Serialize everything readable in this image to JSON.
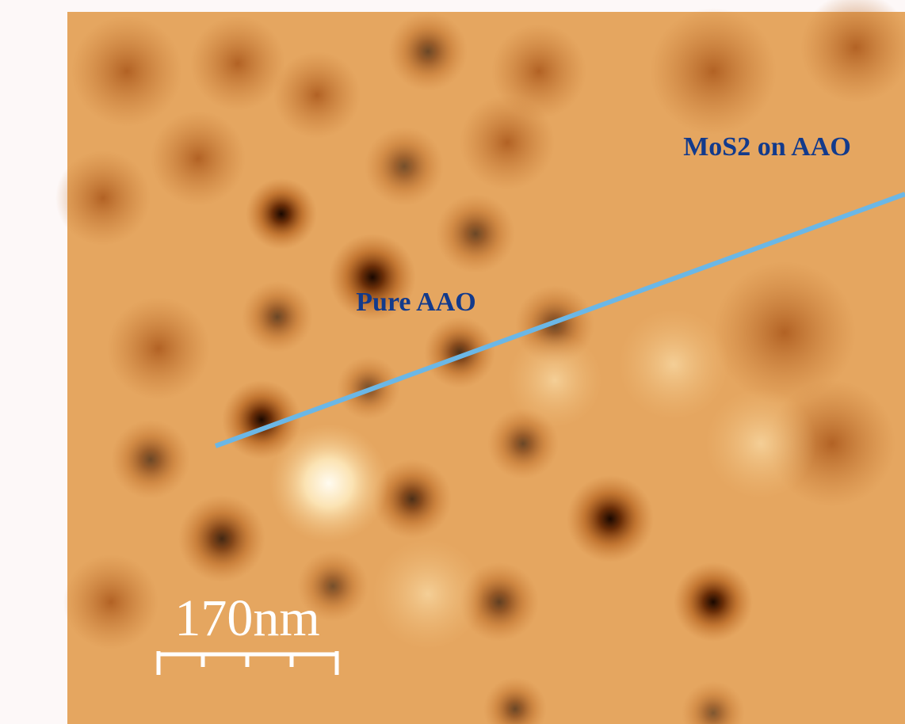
{
  "annotations": {
    "region_right": "MoS2 on AAO",
    "region_left": "Pure AAO"
  },
  "scale_bar": {
    "label": "170nm"
  }
}
